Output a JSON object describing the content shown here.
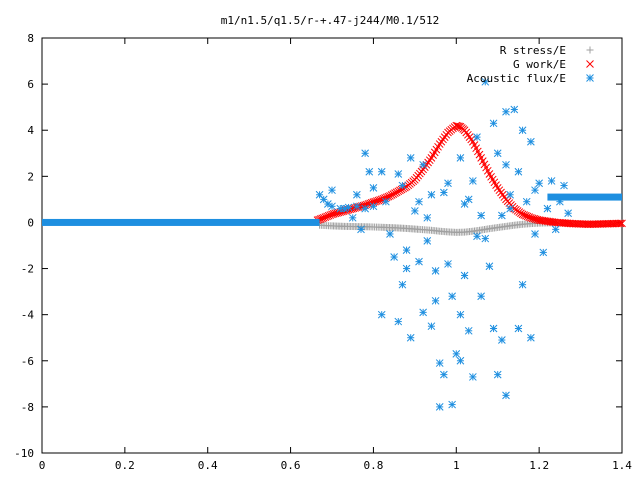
{
  "chart_data": {
    "type": "scatter",
    "title": "m1/n1.5/q1.5/r-+.47-j244/M0.1/512",
    "xlabel": "",
    "ylabel": "",
    "xlim": [
      0,
      1.4
    ],
    "ylim": [
      -10,
      8
    ],
    "x_ticks": [
      "0",
      "0.2",
      "0.4",
      "0.6",
      "0.8",
      "1",
      "1.2",
      "1.4"
    ],
    "y_ticks": [
      "8",
      "6",
      "4",
      "2",
      "0",
      "-2",
      "-4",
      "-6",
      "-8",
      "-10"
    ],
    "x_tick_values": [
      0,
      0.2,
      0.4,
      0.6,
      0.8,
      1.0,
      1.2,
      1.4
    ],
    "y_tick_values": [
      8,
      6,
      4,
      2,
      0,
      -2,
      -4,
      -6,
      -8,
      -10
    ],
    "grid": false,
    "legend_position": "top-right",
    "colors": {
      "r_stress": "#a0a0a0",
      "g_work": "#ff0000",
      "acoustic": "#1e8fe0"
    },
    "series": [
      {
        "name": "R stress/E",
        "marker": "plus",
        "color": "#a0a0a0",
        "points": [
          [
            0.67,
            -0.12
          ],
          [
            0.7,
            -0.15
          ],
          [
            0.73,
            -0.17
          ],
          [
            0.76,
            -0.18
          ],
          [
            0.79,
            -0.19
          ],
          [
            0.82,
            -0.21
          ],
          [
            0.85,
            -0.23
          ],
          [
            0.88,
            -0.26
          ],
          [
            0.91,
            -0.3
          ],
          [
            0.94,
            -0.34
          ],
          [
            0.96,
            -0.38
          ],
          [
            0.98,
            -0.41
          ],
          [
            1.0,
            -0.43
          ],
          [
            1.02,
            -0.42
          ],
          [
            1.04,
            -0.38
          ],
          [
            1.06,
            -0.33
          ],
          [
            1.08,
            -0.27
          ],
          [
            1.1,
            -0.22
          ],
          [
            1.12,
            -0.17
          ],
          [
            1.14,
            -0.12
          ],
          [
            1.16,
            -0.08
          ],
          [
            1.18,
            -0.05
          ],
          [
            1.2,
            -0.03
          ],
          [
            1.22,
            -0.02
          ],
          [
            1.24,
            -0.01
          ]
        ]
      },
      {
        "name": "G work/E",
        "marker": "cross",
        "color": "#ff0000",
        "points": [
          [
            0.665,
            0.1
          ],
          [
            0.68,
            0.2
          ],
          [
            0.7,
            0.35
          ],
          [
            0.72,
            0.45
          ],
          [
            0.74,
            0.55
          ],
          [
            0.76,
            0.65
          ],
          [
            0.78,
            0.75
          ],
          [
            0.8,
            0.88
          ],
          [
            0.82,
            1.0
          ],
          [
            0.84,
            1.15
          ],
          [
            0.86,
            1.35
          ],
          [
            0.88,
            1.55
          ],
          [
            0.9,
            1.85
          ],
          [
            0.92,
            2.3
          ],
          [
            0.94,
            2.8
          ],
          [
            0.96,
            3.4
          ],
          [
            0.98,
            3.9
          ],
          [
            1.0,
            4.2
          ],
          [
            1.01,
            4.15
          ],
          [
            1.02,
            4.0
          ],
          [
            1.04,
            3.5
          ],
          [
            1.06,
            2.8
          ],
          [
            1.08,
            2.1
          ],
          [
            1.1,
            1.5
          ],
          [
            1.12,
            1.0
          ],
          [
            1.14,
            0.6
          ],
          [
            1.16,
            0.35
          ],
          [
            1.18,
            0.2
          ],
          [
            1.2,
            0.1
          ],
          [
            1.24,
            0.0
          ],
          [
            1.28,
            -0.05
          ],
          [
            1.32,
            -0.08
          ],
          [
            1.36,
            -0.06
          ],
          [
            1.4,
            -0.04
          ]
        ]
      },
      {
        "name": "Acoustic flux/E",
        "marker": "star",
        "color": "#1e8fe0",
        "baseline": {
          "y": 0.0,
          "x_range": [
            0.0,
            0.67
          ]
        },
        "band_right": {
          "y": 1.1,
          "x_range": [
            1.22,
            1.4
          ]
        },
        "points": [
          [
            0.67,
            1.2
          ],
          [
            0.68,
            1.0
          ],
          [
            0.69,
            0.8
          ],
          [
            0.7,
            0.7
          ],
          [
            0.72,
            0.6
          ],
          [
            0.74,
            0.65
          ],
          [
            0.76,
            0.7
          ],
          [
            0.78,
            0.6
          ],
          [
            0.8,
            0.7
          ],
          [
            0.7,
            1.4
          ],
          [
            0.73,
            0.6
          ],
          [
            0.75,
            0.2
          ],
          [
            0.77,
            -0.3
          ],
          [
            0.79,
            2.2
          ],
          [
            0.8,
            1.5
          ],
          [
            0.82,
            2.2
          ],
          [
            0.82,
            -4.0
          ],
          [
            0.83,
            0.9
          ],
          [
            0.84,
            -0.5
          ],
          [
            0.85,
            -1.5
          ],
          [
            0.86,
            2.1
          ],
          [
            0.86,
            -4.3
          ],
          [
            0.87,
            1.6
          ],
          [
            0.88,
            -1.2
          ],
          [
            0.89,
            2.8
          ],
          [
            0.89,
            -5.0
          ],
          [
            0.9,
            0.5
          ],
          [
            0.91,
            -1.7
          ],
          [
            0.92,
            2.5
          ],
          [
            0.92,
            -3.9
          ],
          [
            0.93,
            -0.8
          ],
          [
            0.94,
            1.2
          ],
          [
            0.94,
            -4.5
          ],
          [
            0.95,
            -2.1
          ],
          [
            0.96,
            -6.1
          ],
          [
            0.96,
            -8.0
          ],
          [
            0.97,
            1.3
          ],
          [
            0.97,
            -6.6
          ],
          [
            0.98,
            -1.8
          ],
          [
            0.99,
            -3.2
          ],
          [
            0.99,
            -7.9
          ],
          [
            1.0,
            -5.7
          ],
          [
            1.01,
            2.8
          ],
          [
            1.01,
            -6.0
          ],
          [
            1.02,
            0.8
          ],
          [
            1.02,
            -2.3
          ],
          [
            1.03,
            -4.7
          ],
          [
            1.04,
            -6.7
          ],
          [
            1.04,
            1.8
          ],
          [
            1.05,
            -0.6
          ],
          [
            1.06,
            -3.2
          ],
          [
            1.07,
            6.1
          ],
          [
            1.08,
            -1.9
          ],
          [
            1.09,
            -4.6
          ],
          [
            1.09,
            4.3
          ],
          [
            1.1,
            -6.6
          ],
          [
            1.11,
            0.3
          ],
          [
            1.11,
            -5.1
          ],
          [
            1.12,
            2.5
          ],
          [
            1.12,
            -7.5
          ],
          [
            1.13,
            0.6
          ],
          [
            1.14,
            4.9
          ],
          [
            1.15,
            -4.6
          ],
          [
            1.15,
            2.2
          ],
          [
            1.16,
            -2.7
          ],
          [
            1.17,
            0.9
          ],
          [
            1.18,
            -5.0
          ],
          [
            1.18,
            3.5
          ],
          [
            1.19,
            1.4
          ],
          [
            1.2,
            1.7
          ],
          [
            1.21,
            -1.3
          ],
          [
            1.22,
            0.6
          ],
          [
            1.23,
            1.8
          ],
          [
            1.24,
            -0.3
          ],
          [
            1.25,
            0.9
          ],
          [
            1.26,
            1.6
          ],
          [
            1.27,
            0.4
          ],
          [
            0.76,
            1.2
          ],
          [
            0.78,
            3.0
          ],
          [
            0.88,
            -2.0
          ],
          [
            0.93,
            0.2
          ],
          [
            1.03,
            1.0
          ],
          [
            1.05,
            3.7
          ],
          [
            1.06,
            0.3
          ],
          [
            1.1,
            3.0
          ],
          [
            1.13,
            1.2
          ],
          [
            1.16,
            4.0
          ],
          [
            1.19,
            -0.5
          ],
          [
            0.87,
            -2.7
          ],
          [
            0.91,
            0.9
          ],
          [
            0.95,
            -3.4
          ],
          [
            0.98,
            1.7
          ],
          [
            1.01,
            -4.0
          ],
          [
            1.07,
            -0.7
          ],
          [
            1.12,
            4.8
          ]
        ]
      }
    ]
  }
}
